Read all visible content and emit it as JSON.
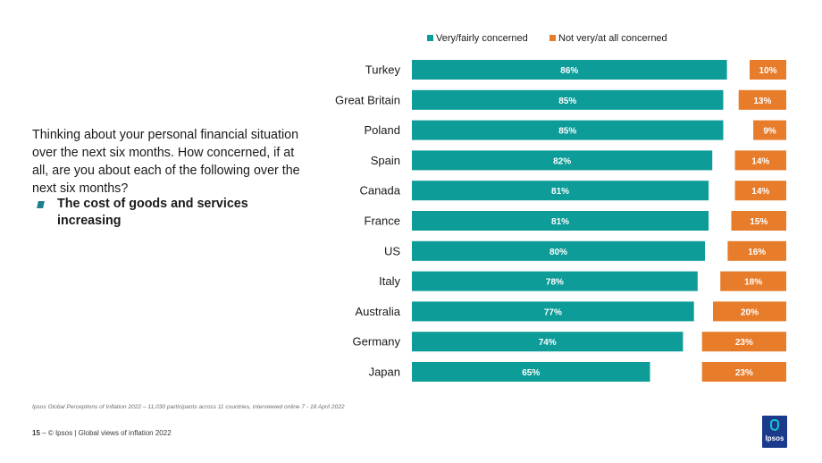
{
  "question": "Thinking about your personal financial situation over the next six months.  How concerned, if at all, are you about each of the following over the next six months?",
  "bullet": "The cost of goods and services increasing",
  "source_note": "Ipsos Global Perceptions of Inflation 2022 – 11,030 participants across 11 countries, interviewed online 7 - 18 April 2022",
  "footer": {
    "page": "15",
    "separator": "–",
    "text": "© Ipsos | Global views of inflation 2022"
  },
  "logo": {
    "text": "Ipsos",
    "icon": "ipsos-logo-icon"
  },
  "colors": {
    "concerned": "#0d9c98",
    "not_concerned": "#e77c2b"
  },
  "chart_data": {
    "type": "bar",
    "orientation": "horizontal",
    "stacked": false,
    "categories": [
      "Turkey",
      "Great Britain",
      "Poland",
      "Spain",
      "Canada",
      "France",
      "US",
      "Italy",
      "Australia",
      "Germany",
      "Japan"
    ],
    "series": [
      {
        "name": "Very/fairly concerned",
        "values": [
          86,
          85,
          85,
          82,
          81,
          81,
          80,
          78,
          77,
          74,
          65
        ],
        "labels": [
          "86%",
          "85%",
          "85%",
          "82%",
          "81%",
          "81%",
          "80%",
          "78%",
          "77%",
          "74%",
          "65%"
        ]
      },
      {
        "name": "Not very/at all concerned",
        "values": [
          10,
          13,
          9,
          14,
          14,
          15,
          16,
          18,
          20,
          23,
          23
        ],
        "labels": [
          "10%",
          "13%",
          "9%",
          "14%",
          "14%",
          "15%",
          "16%",
          "18%",
          "20%",
          "23%",
          "23%"
        ]
      }
    ],
    "legend_position": "top",
    "xlim": [
      0,
      100
    ],
    "title": "",
    "xlabel": "",
    "ylabel": ""
  }
}
